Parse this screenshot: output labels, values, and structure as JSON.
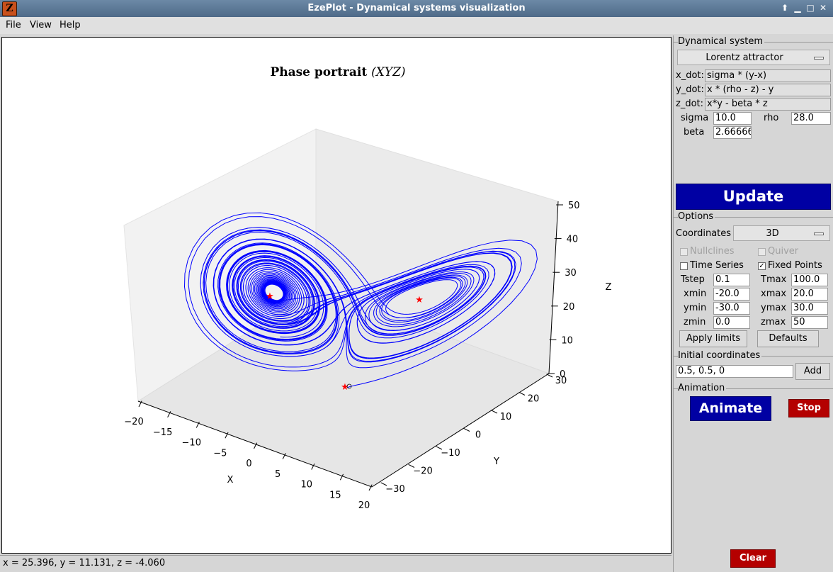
{
  "window": {
    "title": "EzePlot - Dynamical systems visualization",
    "icon": "ezeplot-app-icon",
    "controls": [
      "restore-up-icon",
      "minimize-icon",
      "maximize-icon",
      "close-icon"
    ]
  },
  "menu": [
    "File",
    "View",
    "Help"
  ],
  "plot": {
    "title": "Phase portrait",
    "title_suffix": "(XYZ)",
    "x_label": "X",
    "y_label": "Y",
    "z_label": "Z",
    "x_ticks": [
      "−20",
      "−15",
      "−10",
      "−5",
      "0",
      "5",
      "10",
      "15",
      "20"
    ],
    "y_ticks": [
      "−30",
      "−20",
      "−10",
      "0",
      "10",
      "20",
      "30"
    ],
    "z_ticks": [
      "0",
      "10",
      "20",
      "30",
      "40",
      "50"
    ],
    "trajectory_color": "#0000ff",
    "fixed_point_color": "#ff0000"
  },
  "status": "x = 25.396, y = 11.131, z = -4.060",
  "dynamical_system": {
    "label": "Dynamical system",
    "system": "Lorentz attractor",
    "equations": [
      {
        "label": "x_dot:",
        "value": "sigma * (y-x)"
      },
      {
        "label": "y_dot:",
        "value": "x * (rho - z) - y"
      },
      {
        "label": "z_dot:",
        "value": "x*y - beta * z"
      }
    ],
    "params": {
      "sigma_label": "sigma",
      "sigma": "10.0",
      "rho_label": "rho",
      "rho": "28.0",
      "beta_label": "beta",
      "beta": "2.66666"
    },
    "update": "Update"
  },
  "options": {
    "label": "Options",
    "coordinates_label": "Coordinates",
    "coordinates": "3D",
    "nullclines": "Nullclines",
    "quiver": "Quiver",
    "time_series": "Time Series",
    "fixed_points": "Fixed Points",
    "fixed_points_checked": true,
    "tstep_label": "Tstep",
    "tstep": "0.1",
    "tmax_label": "Tmax",
    "tmax": "100.0",
    "xmin_label": "xmin",
    "xmin": "-20.0",
    "xmax_label": "xmax",
    "xmax": "20.0",
    "ymin_label": "ymin",
    "ymin": "-30.0",
    "ymax_label": "ymax",
    "ymax": "30.0",
    "zmin_label": "zmin",
    "zmin": "0.0",
    "zmax_label": "zmax",
    "zmax": "50",
    "apply": "Apply limits",
    "defaults": "Defaults"
  },
  "initial": {
    "label": "Initial coordinates",
    "value": "0.5, 0.5, 0",
    "add": "Add"
  },
  "animation": {
    "label": "Animation",
    "animate": "Animate",
    "stop": "Stop"
  },
  "clear": "Clear"
}
